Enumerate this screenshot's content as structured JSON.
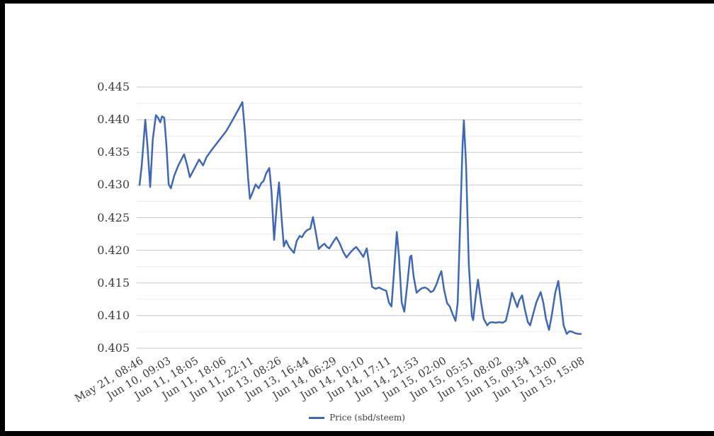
{
  "chart_data": {
    "type": "line",
    "title": "",
    "legend": "Price (sbd/steem)",
    "grid": true,
    "legend_position": "bottom-center",
    "y_axis": {
      "min": 0.405,
      "max": 0.445,
      "major_step": 0.005,
      "minor_step": 0.0025,
      "tick_labels": [
        "0.445",
        "0.440",
        "0.435",
        "0.430",
        "0.425",
        "0.420",
        "0.415",
        "0.410",
        "0.405"
      ]
    },
    "x_axis": {
      "scale": "categorical-even",
      "tick_labels": [
        "May 21, 08:46",
        "Jun 10, 09:03",
        "Jun 11, 18:05",
        "Jun 11, 18:06",
        "Jun 11, 22:11",
        "Jun 13, 08:26",
        "Jun 13, 16:44",
        "Jun 14, 06:29",
        "Jun 14, 10:10",
        "Jun 14, 17:11",
        "Jun 14, 21:53",
        "Jun 15, 02:00",
        "Jun 15, 05:51",
        "Jun 15, 08:02",
        "Jun 15, 09:34",
        "Jun 15, 13:00",
        "Jun 15, 15:08"
      ]
    },
    "series": [
      {
        "name": "Price (sbd/steem)",
        "color": "#3c67bd",
        "points": [
          [
            0.0,
            0.43
          ],
          [
            0.005,
            0.433
          ],
          [
            0.013,
            0.44
          ],
          [
            0.018,
            0.436
          ],
          [
            0.024,
            0.4297
          ],
          [
            0.03,
            0.437
          ],
          [
            0.037,
            0.4407
          ],
          [
            0.042,
            0.4403
          ],
          [
            0.047,
            0.4396
          ],
          [
            0.051,
            0.4405
          ],
          [
            0.056,
            0.4403
          ],
          [
            0.061,
            0.436
          ],
          [
            0.066,
            0.4301
          ],
          [
            0.071,
            0.4295
          ],
          [
            0.079,
            0.4315
          ],
          [
            0.088,
            0.433
          ],
          [
            0.101,
            0.4347
          ],
          [
            0.108,
            0.433
          ],
          [
            0.114,
            0.4312
          ],
          [
            0.124,
            0.4325
          ],
          [
            0.135,
            0.4339
          ],
          [
            0.144,
            0.433
          ],
          [
            0.152,
            0.4343
          ],
          [
            0.165,
            0.4355
          ],
          [
            0.181,
            0.4369
          ],
          [
            0.197,
            0.4383
          ],
          [
            0.213,
            0.4402
          ],
          [
            0.226,
            0.4418
          ],
          [
            0.233,
            0.4427
          ],
          [
            0.239,
            0.438
          ],
          [
            0.246,
            0.431
          ],
          [
            0.25,
            0.4279
          ],
          [
            0.257,
            0.429
          ],
          [
            0.263,
            0.4301
          ],
          [
            0.27,
            0.4295
          ],
          [
            0.276,
            0.4303
          ],
          [
            0.281,
            0.4306
          ],
          [
            0.287,
            0.4318
          ],
          [
            0.294,
            0.4326
          ],
          [
            0.299,
            0.429
          ],
          [
            0.305,
            0.4216
          ],
          [
            0.311,
            0.427
          ],
          [
            0.316,
            0.4304
          ],
          [
            0.323,
            0.424
          ],
          [
            0.327,
            0.4206
          ],
          [
            0.332,
            0.4215
          ],
          [
            0.339,
            0.4205
          ],
          [
            0.345,
            0.42
          ],
          [
            0.35,
            0.4196
          ],
          [
            0.356,
            0.4214
          ],
          [
            0.363,
            0.4222
          ],
          [
            0.368,
            0.422
          ],
          [
            0.374,
            0.4227
          ],
          [
            0.38,
            0.4231
          ],
          [
            0.387,
            0.4233
          ],
          [
            0.393,
            0.4251
          ],
          [
            0.4,
            0.4225
          ],
          [
            0.406,
            0.4202
          ],
          [
            0.413,
            0.4207
          ],
          [
            0.419,
            0.421
          ],
          [
            0.425,
            0.4205
          ],
          [
            0.43,
            0.4203
          ],
          [
            0.438,
            0.4212
          ],
          [
            0.446,
            0.422
          ],
          [
            0.454,
            0.421
          ],
          [
            0.462,
            0.4197
          ],
          [
            0.469,
            0.4189
          ],
          [
            0.477,
            0.4196
          ],
          [
            0.485,
            0.4202
          ],
          [
            0.491,
            0.4205
          ],
          [
            0.499,
            0.4198
          ],
          [
            0.507,
            0.419
          ],
          [
            0.515,
            0.4203
          ],
          [
            0.52,
            0.418
          ],
          [
            0.527,
            0.4144
          ],
          [
            0.535,
            0.4141
          ],
          [
            0.543,
            0.4143
          ],
          [
            0.551,
            0.414
          ],
          [
            0.559,
            0.4138
          ],
          [
            0.565,
            0.412
          ],
          [
            0.571,
            0.4114
          ],
          [
            0.576,
            0.416
          ],
          [
            0.583,
            0.4228
          ],
          [
            0.588,
            0.419
          ],
          [
            0.594,
            0.412
          ],
          [
            0.6,
            0.4106
          ],
          [
            0.607,
            0.415
          ],
          [
            0.613,
            0.419
          ],
          [
            0.616,
            0.4192
          ],
          [
            0.621,
            0.416
          ],
          [
            0.628,
            0.4135
          ],
          [
            0.634,
            0.4139
          ],
          [
            0.64,
            0.4142
          ],
          [
            0.647,
            0.4143
          ],
          [
            0.653,
            0.4141
          ],
          [
            0.66,
            0.4136
          ],
          [
            0.666,
            0.4138
          ],
          [
            0.673,
            0.4148
          ],
          [
            0.679,
            0.416
          ],
          [
            0.684,
            0.4168
          ],
          [
            0.69,
            0.414
          ],
          [
            0.697,
            0.4119
          ],
          [
            0.703,
            0.4114
          ],
          [
            0.709,
            0.4103
          ],
          [
            0.716,
            0.4092
          ],
          [
            0.721,
            0.412
          ],
          [
            0.727,
            0.425
          ],
          [
            0.732,
            0.436
          ],
          [
            0.735,
            0.4399
          ],
          [
            0.74,
            0.433
          ],
          [
            0.746,
            0.418
          ],
          [
            0.753,
            0.41
          ],
          [
            0.756,
            0.4093
          ],
          [
            0.762,
            0.413
          ],
          [
            0.767,
            0.4155
          ],
          [
            0.774,
            0.412
          ],
          [
            0.78,
            0.4095
          ],
          [
            0.788,
            0.4085
          ],
          [
            0.793,
            0.4089
          ],
          [
            0.799,
            0.409
          ],
          [
            0.807,
            0.4089
          ],
          [
            0.815,
            0.409
          ],
          [
            0.823,
            0.4089
          ],
          [
            0.83,
            0.4092
          ],
          [
            0.838,
            0.4115
          ],
          [
            0.844,
            0.4135
          ],
          [
            0.851,
            0.4122
          ],
          [
            0.856,
            0.4113
          ],
          [
            0.86,
            0.4123
          ],
          [
            0.867,
            0.4131
          ],
          [
            0.873,
            0.411
          ],
          [
            0.88,
            0.409
          ],
          [
            0.885,
            0.4085
          ],
          [
            0.891,
            0.41
          ],
          [
            0.899,
            0.412
          ],
          [
            0.909,
            0.4136
          ],
          [
            0.915,
            0.412
          ],
          [
            0.921,
            0.4095
          ],
          [
            0.928,
            0.4078
          ],
          [
            0.934,
            0.41
          ],
          [
            0.942,
            0.4135
          ],
          [
            0.949,
            0.4153
          ],
          [
            0.955,
            0.412
          ],
          [
            0.961,
            0.4085
          ],
          [
            0.968,
            0.4072
          ],
          [
            0.974,
            0.4076
          ],
          [
            0.981,
            0.4075
          ],
          [
            0.987,
            0.4073
          ],
          [
            0.994,
            0.4072
          ],
          [
            1.0,
            0.4072
          ]
        ]
      }
    ],
    "colors": {
      "major_gridline": "#c8c8c8",
      "minor_gridline": "#ececec",
      "axis_text": "#3d3d3d"
    }
  }
}
